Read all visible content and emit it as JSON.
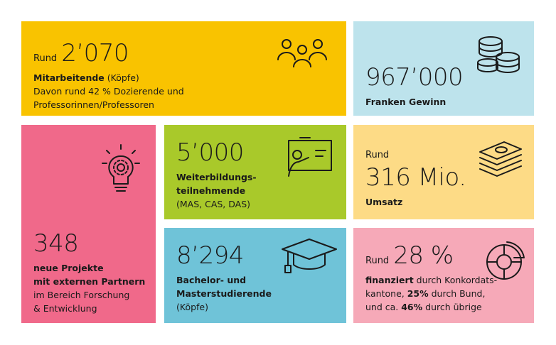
{
  "tiles": [
    {
      "prefix": "Rund",
      "number": "2’070",
      "color": "#f9c300",
      "lines": [
        [
          {
            "text": "Mitarbeitende",
            "bold": true
          },
          {
            "text": " (Köpfe)",
            "bold": false
          }
        ],
        [
          {
            "text": "Davon rund 42 % Dozierende und",
            "bold": false
          }
        ],
        [
          {
            "text": "Professorinnen/Professoren",
            "bold": false
          }
        ]
      ]
    },
    {
      "number": "967’000",
      "color": "#bde3ec",
      "lines": [
        [
          {
            "text": "Franken Gewinn",
            "bold": true
          }
        ]
      ]
    },
    {
      "number": "348",
      "color": "#f0698a",
      "lines": [
        [
          {
            "text": "neue Projekte",
            "bold": true
          }
        ],
        [
          {
            "text": "mit externen Partnern",
            "bold": true
          }
        ],
        [
          {
            "text": "im Bereich Forschung",
            "bold": false
          }
        ],
        [
          {
            "text": "& Entwicklung",
            "bold": false
          }
        ]
      ]
    },
    {
      "number": "5’000",
      "color": "#a9c92a",
      "lines": [
        [
          {
            "text": "Weiterbildungs-",
            "bold": true
          }
        ],
        [
          {
            "text": "teilnehmende",
            "bold": true
          }
        ],
        [
          {
            "text": "(MAS, CAS, DAS)",
            "bold": false
          }
        ]
      ]
    },
    {
      "prefix": "Rund",
      "number": "316 Mio.",
      "color": "#fddb86",
      "lines": [
        [
          {
            "text": "Umsatz",
            "bold": true
          }
        ]
      ]
    },
    {
      "number": "8’294",
      "color": "#6fc3d8",
      "lines": [
        [
          {
            "text": "Bachelor- und",
            "bold": true
          }
        ],
        [
          {
            "text": "Masterstudierende",
            "bold": true
          }
        ],
        [
          {
            "text": "(Köpfe)",
            "bold": false
          }
        ]
      ]
    },
    {
      "prefix": "Rund",
      "number": "28 %",
      "color": "#f6a9b8",
      "lines": [
        [
          {
            "text": "finanziert",
            "bold": true
          },
          {
            "text": " durch Konkordats-",
            "bold": false
          }
        ],
        [
          {
            "text": "kantone, ",
            "bold": false
          },
          {
            "text": "25%",
            "bold": true
          },
          {
            "text": " durch Bund,",
            "bold": false
          }
        ],
        [
          {
            "text": "und ca. ",
            "bold": false
          },
          {
            "text": "46%",
            "bold": true
          },
          {
            "text": " durch übrige",
            "bold": false
          }
        ]
      ]
    }
  ]
}
